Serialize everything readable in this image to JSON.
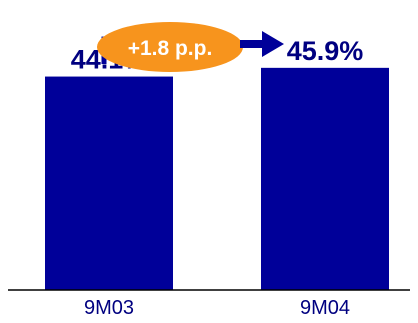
{
  "chart_data": {
    "type": "bar",
    "categories": [
      "9M03",
      "9M04"
    ],
    "values": [
      44.1,
      45.9
    ],
    "value_labels": [
      "44.1%",
      "45.9%"
    ],
    "ylim": [
      0,
      50
    ],
    "grid": false,
    "annotation": "+1.8 p.p.",
    "colors": {
      "bar": "#000099",
      "label": "#000080",
      "bubble": "#f7941d",
      "connector": "#000099"
    }
  }
}
